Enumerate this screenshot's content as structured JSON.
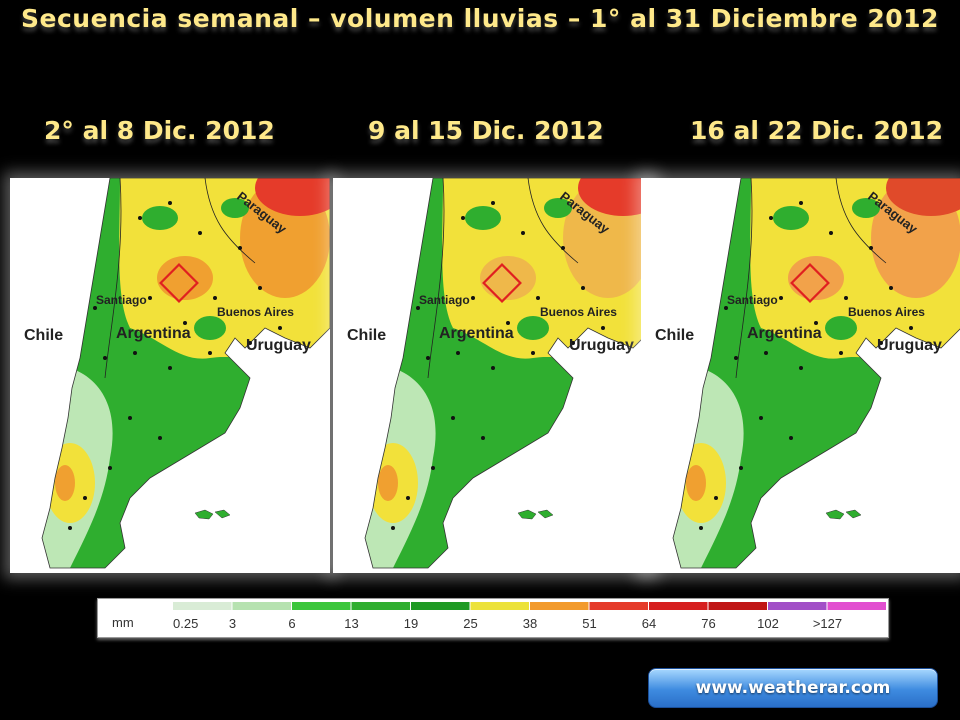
{
  "title": "Secuencia semanal – volumen lluvias – 1° al 31 Diciembre 2012",
  "panels": [
    {
      "label": "2° al 8 Dic. 2012",
      "map_labels": {
        "paraguay": "Paraguay",
        "santiago": "Santiago",
        "buenos_aires": "Buenos Aires",
        "chile": "Chile",
        "argentina": "Argentina",
        "uruguay": "Uruguay"
      }
    },
    {
      "label": "9 al 15 Dic. 2012",
      "map_labels": {
        "paraguay": "Paraguay",
        "santiago": "Santiago",
        "buenos_aires": "Buenos Aires",
        "chile": "Chile",
        "argentina": "Argentina",
        "uruguay": "Uruguay"
      }
    },
    {
      "label": "16 al 22 Dic. 2012",
      "map_labels": {
        "paraguay": "Paraguay",
        "santiago": "Santiago",
        "buenos_aires": "Buenos Aires",
        "chile": "Chile",
        "argentina": "Argentina",
        "uruguay": "Uruguay"
      }
    }
  ],
  "legend": {
    "unit": "mm",
    "ticks": [
      "0.25",
      "3",
      "6",
      "13",
      "19",
      "25",
      "38",
      "51",
      "64",
      "76",
      "102",
      ">127"
    ],
    "colors": [
      "#d9ecd6",
      "#b6e2b0",
      "#3cc63c",
      "#2fae2f",
      "#1f9a24",
      "#ece23a",
      "#f29a2c",
      "#e53b2a",
      "#d61f1f",
      "#c01616",
      "#a24fc7",
      "#e24fd0"
    ]
  },
  "website": "www.weatherar.com"
}
